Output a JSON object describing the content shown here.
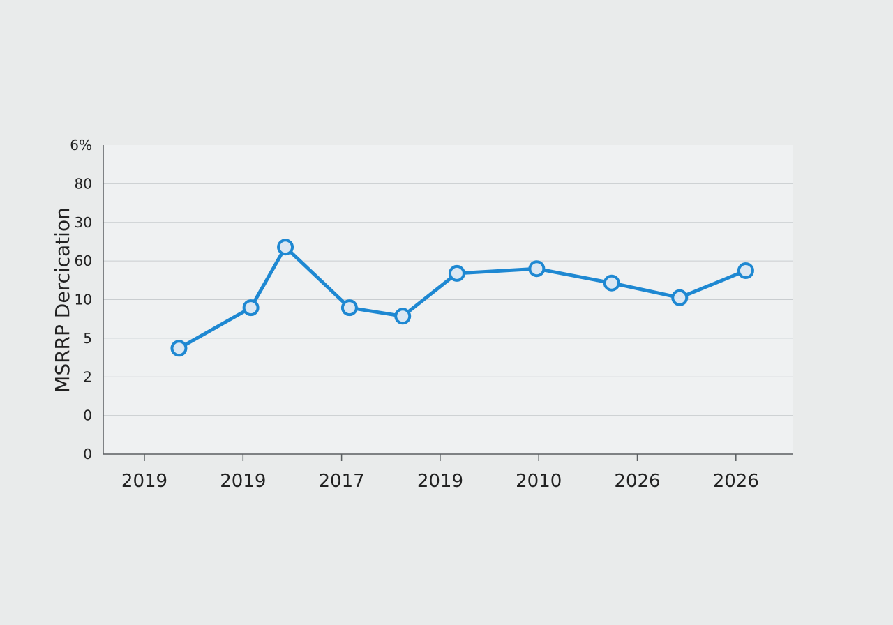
{
  "chart_data": {
    "type": "line",
    "title": "",
    "xlabel": "",
    "ylabel": "MSRRP Dercication",
    "y_tick_labels": [
      "0",
      "0",
      "2",
      "5",
      "10",
      "60",
      "30",
      "80",
      "6%"
    ],
    "x_tick_labels": [
      "2019",
      "2019",
      "2017",
      "2019",
      "2010",
      "2026",
      "2026"
    ],
    "grid": true,
    "legend": "none",
    "series": [
      {
        "color": "#1e88d2",
        "values": [
          {
            "x": 0.35,
            "y": 2.74
          },
          {
            "x": 1.08,
            "y": 3.79
          },
          {
            "x": 1.43,
            "y": 5.36
          },
          {
            "x": 2.08,
            "y": 3.79
          },
          {
            "x": 2.62,
            "y": 3.57
          },
          {
            "x": 3.17,
            "y": 4.68
          },
          {
            "x": 3.98,
            "y": 4.8
          },
          {
            "x": 4.74,
            "y": 4.43
          },
          {
            "x": 5.43,
            "y": 4.05
          },
          {
            "x": 6.1,
            "y": 4.75
          }
        ]
      }
    ]
  },
  "colors": {
    "background": "#e9ebeb",
    "plot_area": "#eff1f2",
    "gridline": "#c9cdd0",
    "axis": "#5a5e61",
    "line": "#1e88d2",
    "marker_fill": "#dbe7f2",
    "text": "#222222"
  }
}
